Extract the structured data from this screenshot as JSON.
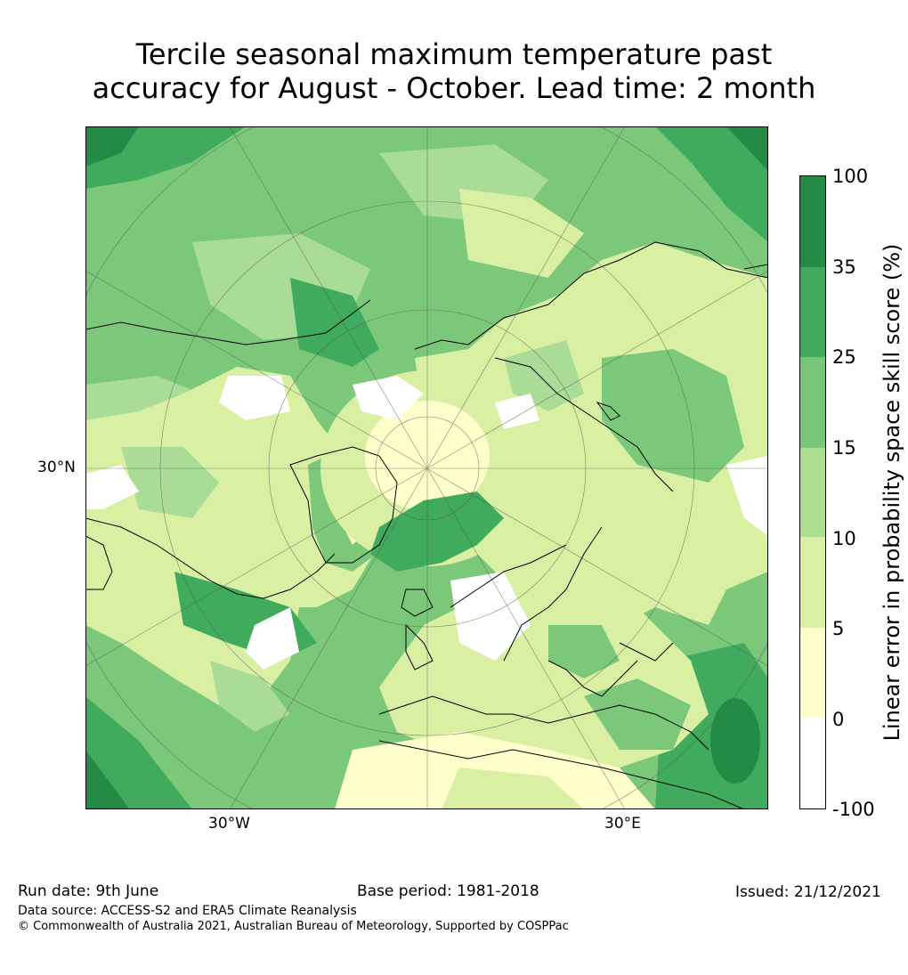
{
  "title_line1": "Tercile seasonal maximum temperature past",
  "title_line2": "accuracy for August - October. Lead time: 2 month",
  "map": {
    "lat_label": "30°N",
    "lon_labels": [
      "30°W",
      "30°E"
    ],
    "colors": {
      "ocean_low": "#a9dc96",
      "ocean_mid": "#7bc87b",
      "ocean_high": "#41ab5d",
      "ocean_top": "#238b45",
      "land_low": "#d9f0a3",
      "neutral": "#ffffcc",
      "negative": "#ffffff",
      "coast": "#000000",
      "graticule": "#555555"
    }
  },
  "colorbar": {
    "title": "Linear error in probability space skill score (%)",
    "levels": [
      "100",
      "35",
      "25",
      "15",
      "10",
      "5",
      "0",
      "-100"
    ],
    "colors": [
      "#238b45",
      "#41ab5d",
      "#78c679",
      "#addd8e",
      "#d9f0a3",
      "#ffffcc",
      "#ffffff"
    ]
  },
  "footer": {
    "run_date": "Run date: 9th June",
    "base_period": "Base period: 1981-2018",
    "issued": "Issued: 21/12/2021",
    "data_source": "Data source: ACCESS-S2 and ERA5 Climate Reanalysis",
    "copyright": "© Commonwealth of Australia 2021, Australian Bureau of Meteorology, Supported by COSPPac"
  }
}
